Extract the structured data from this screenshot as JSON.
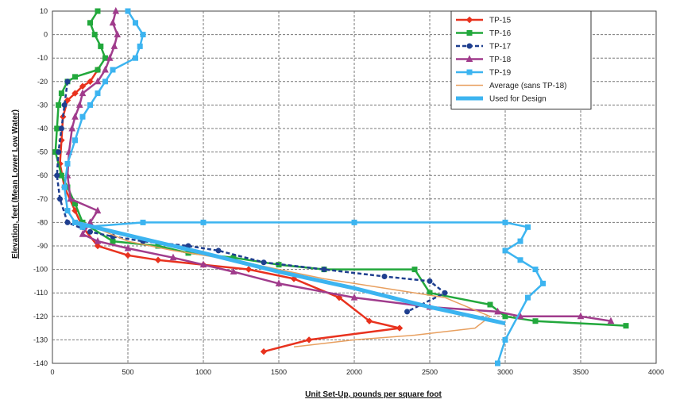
{
  "chart_data": {
    "type": "line",
    "xlabel": "Unit Set-Up, pounds per square foot",
    "ylabel": "Elevation, feet (Mean Lower Low Water)",
    "xlim": [
      0,
      4000
    ],
    "ylim": [
      -140,
      10
    ],
    "x_ticks": [
      0,
      500,
      1000,
      1500,
      2000,
      2500,
      3000,
      3500,
      4000
    ],
    "y_ticks": [
      10,
      0,
      -10,
      -20,
      -30,
      -40,
      -50,
      -60,
      -70,
      -80,
      -90,
      -100,
      -110,
      -120,
      -130,
      -140
    ],
    "grid": true,
    "legend_position": "top-right",
    "series": [
      {
        "name": "TP-15",
        "color": "#e8321e",
        "marker": "diamond",
        "points": [
          [
            300,
            -15
          ],
          [
            250,
            -20
          ],
          [
            200,
            -22
          ],
          [
            150,
            -25
          ],
          [
            100,
            -28
          ],
          [
            70,
            -35
          ],
          [
            60,
            -45
          ],
          [
            50,
            -55
          ],
          [
            80,
            -65
          ],
          [
            150,
            -75
          ],
          [
            200,
            -82
          ],
          [
            300,
            -90
          ],
          [
            500,
            -94
          ],
          [
            700,
            -96
          ],
          [
            1000,
            -98
          ],
          [
            1300,
            -100
          ],
          [
            1600,
            -104
          ],
          [
            1900,
            -112
          ],
          [
            2100,
            -122
          ],
          [
            2300,
            -125
          ],
          [
            1700,
            -130
          ],
          [
            1400,
            -135
          ]
        ]
      },
      {
        "name": "TP-16",
        "color": "#22a83c",
        "marker": "square",
        "points": [
          [
            300,
            10
          ],
          [
            250,
            5
          ],
          [
            280,
            0
          ],
          [
            320,
            -5
          ],
          [
            350,
            -10
          ],
          [
            300,
            -15
          ],
          [
            150,
            -18
          ],
          [
            100,
            -20
          ],
          [
            60,
            -25
          ],
          [
            40,
            -30
          ],
          [
            30,
            -40
          ],
          [
            20,
            -50
          ],
          [
            60,
            -60
          ],
          [
            100,
            -65
          ],
          [
            150,
            -72
          ],
          [
            200,
            -80
          ],
          [
            400,
            -88
          ],
          [
            700,
            -90
          ],
          [
            900,
            -93
          ],
          [
            1200,
            -95
          ],
          [
            1500,
            -98
          ],
          [
            1800,
            -100
          ],
          [
            2400,
            -100
          ],
          [
            2500,
            -110
          ],
          [
            2900,
            -115
          ],
          [
            3000,
            -120
          ],
          [
            3200,
            -122
          ],
          [
            3800,
            -124
          ]
        ]
      },
      {
        "name": "TP-17",
        "color": "#1f3f8f",
        "marker": "circle",
        "points": [
          [
            100,
            -20
          ],
          [
            80,
            -30
          ],
          [
            60,
            -40
          ],
          [
            40,
            -50
          ],
          [
            30,
            -60
          ],
          [
            50,
            -70
          ],
          [
            100,
            -80
          ],
          [
            250,
            -84
          ],
          [
            400,
            -86
          ],
          [
            600,
            -88
          ],
          [
            900,
            -90
          ],
          [
            1100,
            -92
          ],
          [
            1400,
            -97
          ],
          [
            1800,
            -100
          ],
          [
            2200,
            -103
          ],
          [
            2500,
            -105
          ],
          [
            2600,
            -110
          ],
          [
            2350,
            -118
          ]
        ]
      },
      {
        "name": "TP-18",
        "color": "#a03c8c",
        "marker": "triangle",
        "points": [
          [
            420,
            10
          ],
          [
            400,
            5
          ],
          [
            430,
            0
          ],
          [
            410,
            -5
          ],
          [
            380,
            -10
          ],
          [
            350,
            -15
          ],
          [
            300,
            -20
          ],
          [
            200,
            -25
          ],
          [
            180,
            -30
          ],
          [
            150,
            -35
          ],
          [
            130,
            -40
          ],
          [
            110,
            -50
          ],
          [
            100,
            -60
          ],
          [
            120,
            -70
          ],
          [
            300,
            -75
          ],
          [
            250,
            -80
          ],
          [
            200,
            -85
          ],
          [
            300,
            -88
          ],
          [
            500,
            -91
          ],
          [
            800,
            -95
          ],
          [
            1000,
            -98
          ],
          [
            1200,
            -101
          ],
          [
            1500,
            -106
          ],
          [
            2000,
            -112
          ],
          [
            2500,
            -116
          ],
          [
            2950,
            -118
          ],
          [
            3100,
            -120
          ],
          [
            3500,
            -120
          ],
          [
            3700,
            -122
          ]
        ]
      },
      {
        "name": "TP-19",
        "color": "#3cb4f0",
        "marker": "square",
        "points": [
          [
            500,
            10
          ],
          [
            550,
            5
          ],
          [
            600,
            0
          ],
          [
            580,
            -5
          ],
          [
            550,
            -10
          ],
          [
            400,
            -15
          ],
          [
            350,
            -20
          ],
          [
            300,
            -25
          ],
          [
            250,
            -30
          ],
          [
            200,
            -35
          ],
          [
            150,
            -45
          ],
          [
            100,
            -55
          ],
          [
            80,
            -65
          ],
          [
            100,
            -75
          ],
          [
            150,
            -80
          ],
          [
            200,
            -82
          ],
          [
            600,
            -80
          ],
          [
            1000,
            -80
          ],
          [
            2000,
            -80
          ],
          [
            3000,
            -80
          ],
          [
            3150,
            -82
          ],
          [
            3100,
            -88
          ],
          [
            3000,
            -92
          ],
          [
            3100,
            -96
          ],
          [
            3200,
            -100
          ],
          [
            3250,
            -106
          ],
          [
            3150,
            -112
          ],
          [
            3000,
            -130
          ],
          [
            2950,
            -140
          ]
        ]
      },
      {
        "name": "Average (sans TP-18)",
        "color": "#e8a060",
        "marker": "none",
        "points": [
          [
            200,
            -80
          ],
          [
            500,
            -88
          ],
          [
            800,
            -92
          ],
          [
            1000,
            -94
          ],
          [
            1200,
            -96
          ],
          [
            1500,
            -100
          ],
          [
            1800,
            -104
          ],
          [
            2200,
            -108
          ],
          [
            2600,
            -112
          ],
          [
            2900,
            -120
          ],
          [
            2800,
            -125
          ],
          [
            2400,
            -128
          ],
          [
            2000,
            -130
          ],
          [
            1600,
            -133
          ]
        ]
      },
      {
        "name": "Used for Design",
        "color": "#3cb4f0",
        "marker": "none",
        "thick": true,
        "points": [
          [
            150,
            -80
          ],
          [
            600,
            -87
          ],
          [
            1000,
            -93
          ],
          [
            1500,
            -101
          ],
          [
            2000,
            -108
          ],
          [
            2500,
            -116
          ],
          [
            3000,
            -123
          ]
        ]
      }
    ]
  }
}
